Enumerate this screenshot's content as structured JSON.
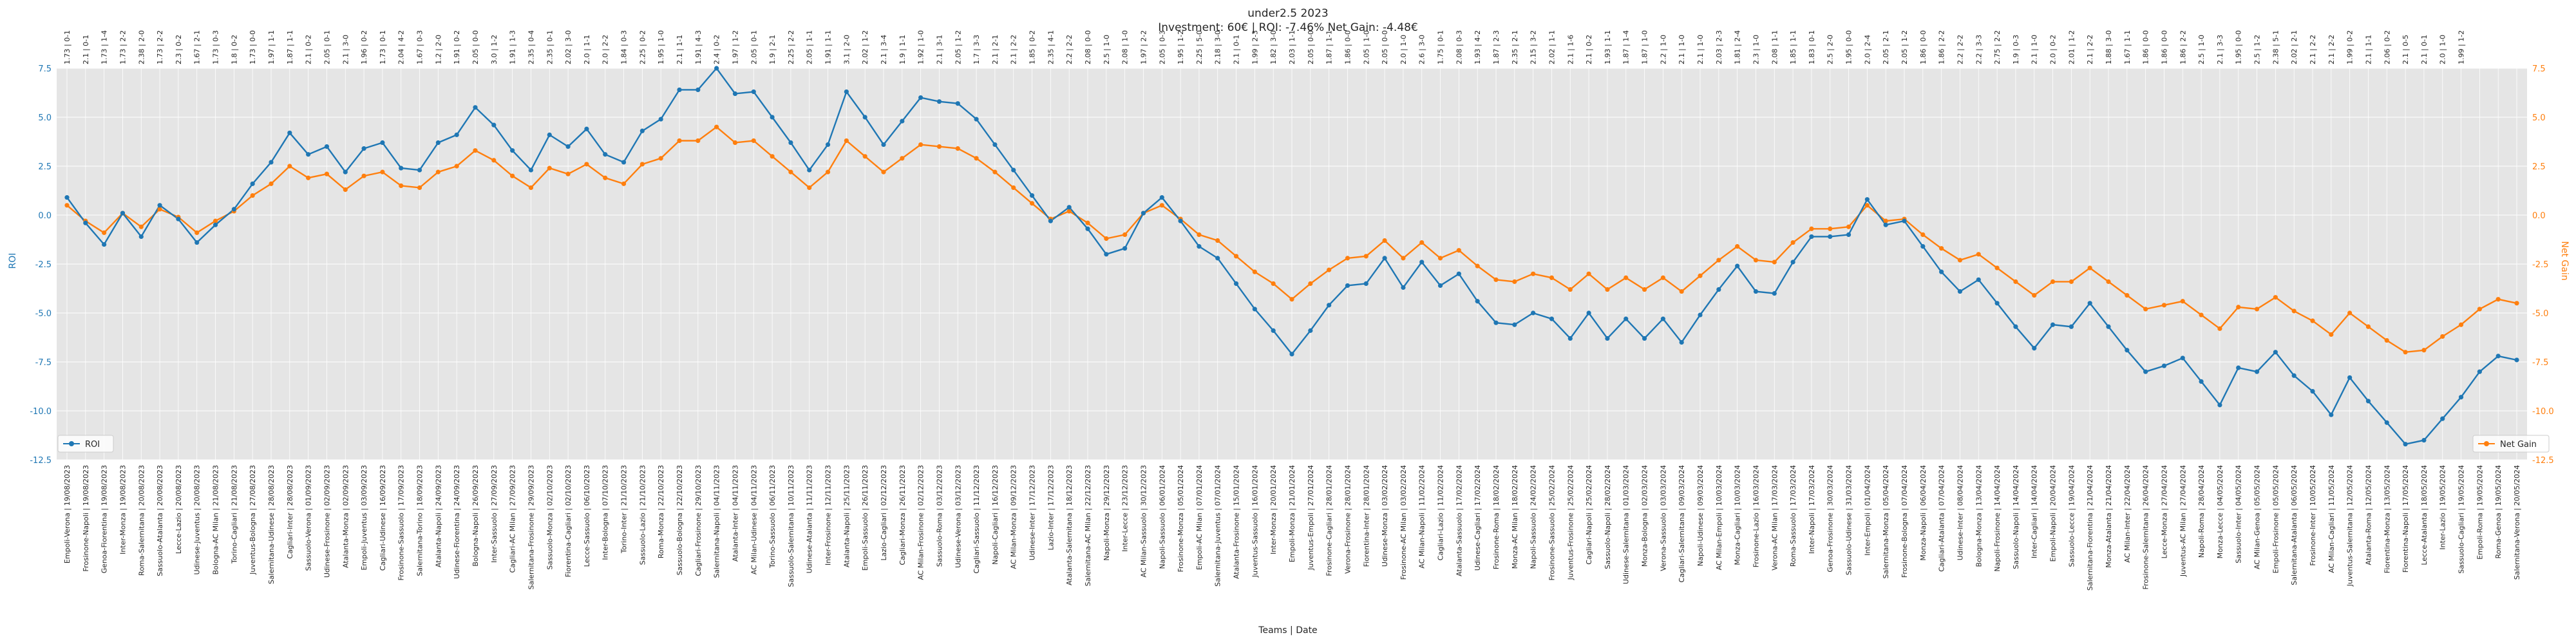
{
  "chart_data": {
    "type": "line",
    "title": "under2.5 2023",
    "subtitle": "Investment: 60€ | ROI: -7.46% Net Gain: -4.48€",
    "xlabel": "Teams | Date",
    "ylabel_left": "ROI",
    "ylabel_right": "Net Gain",
    "ylim_left": [
      -12.5,
      7.5
    ],
    "ylim_right": [
      -12.5,
      7.5
    ],
    "yticks": [
      -12.5,
      -10.0,
      -7.5,
      -5.0,
      -2.5,
      0.0,
      2.5,
      5.0,
      7.5
    ],
    "grid": true,
    "colors": {
      "roi": "#1f77b4",
      "net_gain": "#ff7f0e",
      "background": "#e5e5e5"
    },
    "legend": [
      {
        "name": "ROI",
        "position": "lower-left"
      },
      {
        "name": "Net Gain",
        "position": "lower-right"
      }
    ],
    "categories": [
      "Empoli-Verona | 19/08/2023",
      "Frosinone-Napoli | 19/08/2023",
      "Genoa-Fiorentina | 19/08/2023",
      "Inter-Monza | 19/08/2023",
      "Roma-Salernitana | 20/08/2023",
      "Sassuolo-Atalanta | 20/08/2023",
      "Lecce-Lazio | 20/08/2023",
      "Udinese-Juventus | 20/08/2023",
      "Bologna-AC Milan | 21/08/2023",
      "Torino-Cagliari | 21/08/2023",
      "Juventus-Bologna | 27/08/2023",
      "Salernitana-Udinese | 28/08/2023",
      "Cagliari-Inter | 28/08/2023",
      "Sassuolo-Verona | 01/09/2023",
      "Udinese-Frosinone | 02/09/2023",
      "Atalanta-Monza | 02/09/2023",
      "Empoli-Juventus | 03/09/2023",
      "Cagliari-Udinese | 16/09/2023",
      "Frosinone-Sassuolo | 17/09/2023",
      "Salernitana-Torino | 18/09/2023",
      "Atalanta-Napoli | 24/09/2023",
      "Udinese-Fiorentina | 24/09/2023",
      "Bologna-Napoli | 26/09/2023",
      "Inter-Sassuolo | 27/09/2023",
      "Cagliari-AC Milan | 27/09/2023",
      "Salernitana-Frosinone | 29/09/2023",
      "Sassuolo-Monza | 02/10/2023",
      "Fiorentina-Cagliari | 02/10/2023",
      "Lecce-Sassuolo | 06/10/2023",
      "Inter-Bologna | 07/10/2023",
      "Torino-Inter | 21/10/2023",
      "Sassuolo-Lazio | 21/10/2023",
      "Roma-Monza | 22/10/2023",
      "Sassuolo-Bologna | 22/10/2023",
      "Cagliari-Frosinone | 29/10/2023",
      "Salernitana-Napoli | 04/11/2023",
      "Atalanta-Inter | 04/11/2023",
      "AC Milan-Udinese | 04/11/2023",
      "Torino-Sassuolo | 06/11/2023",
      "Sassuolo-Salernitana | 10/11/2023",
      "Udinese-Atalanta | 11/11/2023",
      "Inter-Frosinone | 12/11/2023",
      "Atalanta-Napoli | 25/11/2023",
      "Empoli-Sassuolo | 26/11/2023",
      "Lazio-Cagliari | 02/12/2023",
      "Cagliari-Monza | 26/11/2023",
      "AC Milan-Frosinone | 02/12/2023",
      "Sassuolo-Roma | 03/12/2023",
      "Udinese-Verona | 03/12/2023",
      "Cagliari-Sassuolo | 11/12/2023",
      "Napoli-Cagliari | 16/12/2023",
      "AC Milan-Monza | 09/12/2023",
      "Udinese-Inter | 17/12/2023",
      "Lazio-Inter | 17/12/2023",
      "Atalanta-Salernitana | 18/12/2023",
      "Salernitana-AC Milan | 22/12/2023",
      "Napoli-Monza | 29/12/2023",
      "Inter-Lecce | 23/12/2023",
      "AC Milan-Sassuolo | 30/12/2023",
      "Napoli-Sassuolo | 06/01/2024",
      "Frosinone-Monza | 05/01/2024",
      "Empoli-AC Milan | 07/01/2024",
      "Salernitana-Juventus | 07/01/2024",
      "Atalanta-Frosinone | 15/01/2024",
      "Juventus-Sassuolo | 16/01/2024",
      "Inter-Monza | 20/01/2024",
      "Empoli-Monza | 21/01/2024",
      "Juventus-Empoli | 27/01/2024",
      "Frosinone-Cagliari | 28/01/2024",
      "Verona-Frosinone | 28/01/2024",
      "Fiorentina-Inter | 28/01/2024",
      "Udinese-Monza | 03/02/2024",
      "Frosinone-AC Milan | 03/02/2024",
      "AC Milan-Napoli | 11/02/2024",
      "Cagliari-Lazio | 11/02/2024",
      "Atalanta-Sassuolo | 17/02/2024",
      "Udinese-Cagliari | 17/02/2024",
      "Frosinone-Roma | 18/02/2024",
      "Monza-AC Milan | 18/02/2024",
      "Napoli-Sassuolo | 24/02/2024",
      "Frosinone-Sassuolo | 25/02/2024",
      "Juventus-Frosinone | 25/02/2024",
      "Cagliari-Napoli | 25/02/2024",
      "Sassuolo-Napoli | 28/02/2024",
      "Udinese-Salernitana | 01/03/2024",
      "Monza-Bologna | 02/03/2024",
      "Verona-Sassuolo | 03/03/2024",
      "Cagliari-Salernitana | 09/03/2024",
      "Napoli-Udinese | 09/03/2024",
      "AC Milan-Empoli | 10/03/2024",
      "Monza-Cagliari | 10/03/2024",
      "Frosinone-Lazio | 16/03/2024",
      "Verona-AC Milan | 17/03/2024",
      "Roma-Sassuolo | 17/03/2024",
      "Inter-Napoli | 17/03/2024",
      "Genoa-Frosinone | 30/03/2024",
      "Sassuolo-Udinese | 31/03/2024",
      "Inter-Empoli | 01/04/2024",
      "Salernitana-Monza | 05/04/2024",
      "Frosinone-Bologna | 07/04/2024",
      "Monza-Napoli | 06/04/2024",
      "Cagliari-Atalanta | 07/04/2024",
      "Udinese-Inter | 08/04/2024",
      "Bologna-Monza | 13/04/2024",
      "Napoli-Frosinone | 14/04/2024",
      "Sassuolo-Napoli | 14/04/2024",
      "Inter-Cagliari | 14/04/2024",
      "Empoli-Napoli | 20/04/2024",
      "Sassuolo-Lecce | 19/04/2024",
      "Salernitana-Fiorentina | 21/04/2024",
      "Monza-Atalanta | 21/04/2024",
      "AC Milan-Inter | 22/04/2024",
      "Frosinone-Salernitana | 26/04/2024",
      "Lecce-Monza | 27/04/2024",
      "Juventus-AC Milan | 27/04/2024",
      "Napoli-Roma | 28/04/2024",
      "Monza-Lecce | 04/05/2024",
      "Sassuolo-Inter | 04/05/2024",
      "AC Milan-Genoa | 05/05/2024",
      "Empoli-Frosinone | 05/05/2024",
      "Salernitana-Atalanta | 06/05/2024",
      "Frosinone-Inter | 10/05/2024",
      "AC Milan-Cagliari | 11/05/2024",
      "Juventus-Salernitana | 12/05/2024",
      "Atalanta-Roma | 12/05/2024",
      "Fiorentina-Monza | 13/05/2024",
      "Fiorentina-Napoli | 17/05/2024",
      "Lecce-Atalanta | 18/05/2024",
      "Inter-Lazio | 19/05/2024",
      "Sassuolo-Cagliari | 19/05/2024",
      "Empoli-Roma | 19/05/2024",
      "Roma-Genoa | 19/05/2024",
      "Salernitana-Verona | 20/05/2024"
    ],
    "top_labels": [
      "1.73 | 0-1",
      "2.1 | 0-1",
      "1.73 | 1-4",
      "1.73 | 2-2",
      "2.38 | 2-0",
      "1.73 | 2-2",
      "2.3 | 0-2",
      "1.67 | 2-1",
      "1.73 | 0-3",
      "1.8 | 0-2",
      "1.73 | 0-0",
      "1.97 | 1-1",
      "1.87 | 1-1",
      "2.1 | 0-2",
      "2.05 | 0-1",
      "2.1 | 3-0",
      "1.96 | 0-2",
      "1.73 | 0-1",
      "2.04 | 4-2",
      "1.67 | 0-3",
      "1.2 | 2-0",
      "1.91 | 0-2",
      "2.05 | 0-0",
      "3.0 | 1-2",
      "1.91 | 1-3",
      "2.35 | 0-4",
      "2.35 | 0-1",
      "2.02 | 3-0",
      "2.0 | 1-1",
      "2.0 | 2-2",
      "1.84 | 0-3",
      "2.25 | 0-2",
      "1.95 | 1-0",
      "2.1 | 1-1",
      "1.91 | 4-3",
      "2.4 | 0-2",
      "1.97 | 1-2",
      "2.05 | 0-1",
      "1.9 | 2-1",
      "2.25 | 2-2",
      "2.05 | 1-1",
      "1.91 | 1-1",
      "3.1 | 2-0",
      "2.02 | 1-2",
      "2.1 | 3-4",
      "1.9 | 1-1",
      "1.92 | 1-0",
      "2.1 | 3-1",
      "2.05 | 1-2",
      "1.7 | 3-3",
      "2.1 | 2-1",
      "2.1 | 2-2",
      "1.85 | 0-2",
      "2.35 | 4-1",
      "2.2 | 2-2",
      "2.08 | 0-0",
      "2.5 | 1-0",
      "2.08 | 1-0",
      "1.97 | 2-2",
      "2.05 | 0-3",
      "1.95 | 1-2",
      "2.25 | 5-0",
      "2.18 | 3-0",
      "2.1 | 0-1",
      "1.99 | 2-3",
      "1.82 | 3-0",
      "2.03 | 1-1",
      "2.05 | 0-0",
      "1.87 | 1-1",
      "1.86 | 0-0",
      "2.05 | 1-0",
      "2.05 | 0-0",
      "2.0 | 1-0",
      "2.6 | 3-0",
      "1.75 | 0-1",
      "2.08 | 0-3",
      "1.93 | 4-2",
      "1.87 | 2-3",
      "2.35 | 2-1",
      "2.15 | 3-2",
      "2.02 | 1-1",
      "2.1 | 1-6",
      "2.1 | 0-2",
      "1.93 | 1-1",
      "1.87 | 1-4",
      "1.87 | 1-0",
      "2.2 | 1-0",
      "2.1 | 1-0",
      "2.1 | 1-0",
      "2.03 | 2-3",
      "1.81 | 2-4",
      "2.3 | 1-0",
      "2.08 | 1-1",
      "1.85 | 1-1",
      "1.83 | 0-1",
      "2.5 | 2-0",
      "1.95 | 0-0",
      "2.0 | 2-4",
      "2.05 | 2-1",
      "2.05 | 1-2",
      "1.86 | 0-0",
      "1.86 | 2-2",
      "2.2 | 2-2",
      "2.2 | 3-3",
      "2.75 | 2-2",
      "1.9 | 0-3",
      "2.1 | 1-0",
      "2.0 | 0-2",
      "2.01 | 1-2",
      "2.1 | 2-2",
      "1.88 | 3-0",
      "1.67 | 1-1",
      "1.86 | 0-0",
      "1.86 | 0-0",
      "1.86 | 2-2",
      "2.5 | 1-0",
      "2.1 | 3-3",
      "1.95 | 0-0",
      "2.5 | 1-2",
      "2.38 | 5-1",
      "2.02 | 2-1",
      "2.1 | 2-2",
      "2.1 | 2-2",
      "1.99 | 0-2",
      "2.1 | 1-1",
      "2.06 | 0-2",
      "2.1 | 0-5",
      "2.1 | 0-1",
      "2.0 | 1-0",
      "1.99 | 1-2"
    ],
    "series": [
      {
        "name": "ROI",
        "axis": "left",
        "values": [
          0.9,
          -0.4,
          -1.5,
          0.1,
          -1.1,
          0.5,
          -0.2,
          -1.4,
          -0.5,
          0.3,
          1.6,
          2.7,
          4.2,
          3.1,
          3.5,
          2.2,
          3.4,
          3.7,
          2.4,
          2.3,
          3.7,
          4.1,
          5.5,
          4.6,
          3.3,
          2.3,
          4.1,
          3.5,
          4.4,
          3.1,
          2.7,
          4.3,
          4.9,
          6.4,
          6.4,
          7.5,
          6.2,
          6.3,
          5.0,
          3.7,
          2.3,
          3.6,
          6.3,
          5.0,
          3.6,
          4.8,
          6.0,
          5.8,
          5.7,
          4.9,
          3.6,
          2.3,
          1.0,
          -0.3,
          0.4,
          -0.7,
          -2.0,
          -1.7,
          0.1,
          0.9,
          -0.3,
          -1.6,
          -2.2,
          -3.5,
          -4.8,
          -5.9,
          -7.1,
          -5.9,
          -4.6,
          -3.6,
          -3.5,
          -2.2,
          -3.7,
          -2.4,
          -3.6,
          -3.0,
          -4.4,
          -5.5,
          -5.6,
          -5.0,
          -5.3,
          -6.3,
          -5.0,
          -6.3,
          -5.3,
          -6.3,
          -5.3,
          -6.5,
          -5.1,
          -3.8,
          -2.6,
          -3.9,
          -4.0,
          -2.4,
          -1.1,
          -1.1,
          -1.0,
          0.8,
          -0.5,
          -0.3,
          -1.6,
          -2.9,
          -3.9,
          -3.3,
          -4.5,
          -5.7,
          -6.8,
          -5.6,
          -5.7,
          -4.5,
          -5.7,
          -6.9,
          -8.0,
          -7.7,
          -7.3,
          -8.5,
          -9.7,
          -7.8,
          -8.0,
          -7.0,
          -8.2,
          -9.0,
          -10.2,
          -8.3,
          -9.5,
          -10.6,
          -11.7,
          -11.5,
          -10.4,
          -9.3,
          -8.0,
          -7.2,
          -7.4
        ]
      },
      {
        "name": "Net Gain",
        "axis": "right",
        "values": [
          0.5,
          -0.3,
          -0.9,
          0.1,
          -0.6,
          0.3,
          -0.1,
          -0.9,
          -0.3,
          0.2,
          1.0,
          1.6,
          2.5,
          1.9,
          2.1,
          1.3,
          2.0,
          2.2,
          1.5,
          1.4,
          2.2,
          2.5,
          3.3,
          2.8,
          2.0,
          1.4,
          2.4,
          2.1,
          2.6,
          1.9,
          1.6,
          2.6,
          2.9,
          3.8,
          3.8,
          4.5,
          3.7,
          3.8,
          3.0,
          2.2,
          1.4,
          2.2,
          3.8,
          3.0,
          2.2,
          2.9,
          3.6,
          3.5,
          3.4,
          2.9,
          2.2,
          1.4,
          0.6,
          -0.2,
          0.2,
          -0.4,
          -1.2,
          -1.0,
          0.1,
          0.5,
          -0.2,
          -1.0,
          -1.3,
          -2.1,
          -2.9,
          -3.5,
          -4.3,
          -3.5,
          -2.8,
          -2.2,
          -2.1,
          -1.3,
          -2.2,
          -1.4,
          -2.2,
          -1.8,
          -2.6,
          -3.3,
          -3.4,
          -3.0,
          -3.2,
          -3.8,
          -3.0,
          -3.8,
          -3.2,
          -3.8,
          -3.2,
          -3.9,
          -3.1,
          -2.3,
          -1.6,
          -2.3,
          -2.4,
          -1.4,
          -0.7,
          -0.7,
          -0.6,
          0.5,
          -0.3,
          -0.2,
          -1.0,
          -1.7,
          -2.3,
          -2.0,
          -2.7,
          -3.4,
          -4.1,
          -3.4,
          -3.4,
          -2.7,
          -3.4,
          -4.1,
          -4.8,
          -4.6,
          -4.4,
          -5.1,
          -5.8,
          -4.7,
          -4.8,
          -4.2,
          -4.9,
          -5.4,
          -6.1,
          -5.0,
          -5.7,
          -6.4,
          -7.0,
          -6.9,
          -6.2,
          -5.6,
          -4.8,
          -4.3,
          -4.5
        ]
      }
    ]
  }
}
